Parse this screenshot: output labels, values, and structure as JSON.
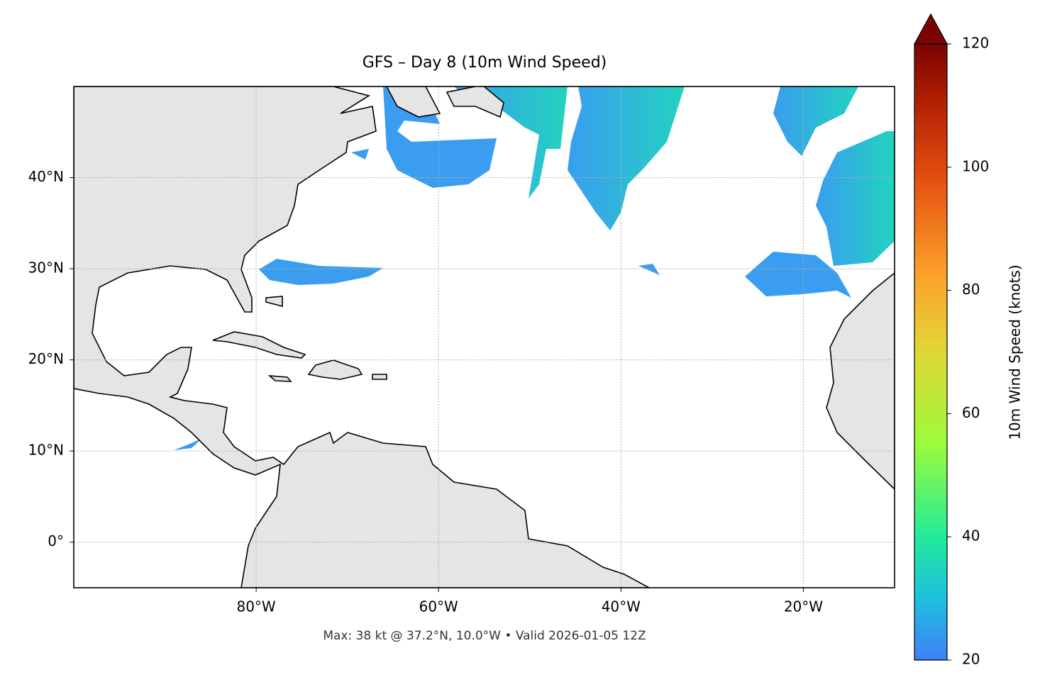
{
  "chart_data": {
    "type": "map",
    "title": "GFS – Day 8 (10m Wind Speed)",
    "annotation": "Max: 38 kt @ 37.2°N, 10.0°W • Valid 2026-01-05 12Z",
    "xlim": [
      -100,
      -10
    ],
    "ylim": [
      -5,
      50
    ],
    "xticks": [
      {
        "value": -80,
        "label": "80°W"
      },
      {
        "value": -60,
        "label": "60°W"
      },
      {
        "value": -40,
        "label": "40°W"
      },
      {
        "value": -20,
        "label": "20°W"
      }
    ],
    "yticks": [
      {
        "value": 0,
        "label": "0°"
      },
      {
        "value": 10,
        "label": "10°N"
      },
      {
        "value": 20,
        "label": "20°N"
      },
      {
        "value": 30,
        "label": "30°N"
      },
      {
        "value": 40,
        "label": "40°N"
      }
    ],
    "grid": true,
    "colorbar": {
      "label": "10m Wind Speed (knots)",
      "lim": [
        20,
        120
      ],
      "ticks": [
        20,
        40,
        60,
        80,
        100,
        120
      ]
    }
  }
}
